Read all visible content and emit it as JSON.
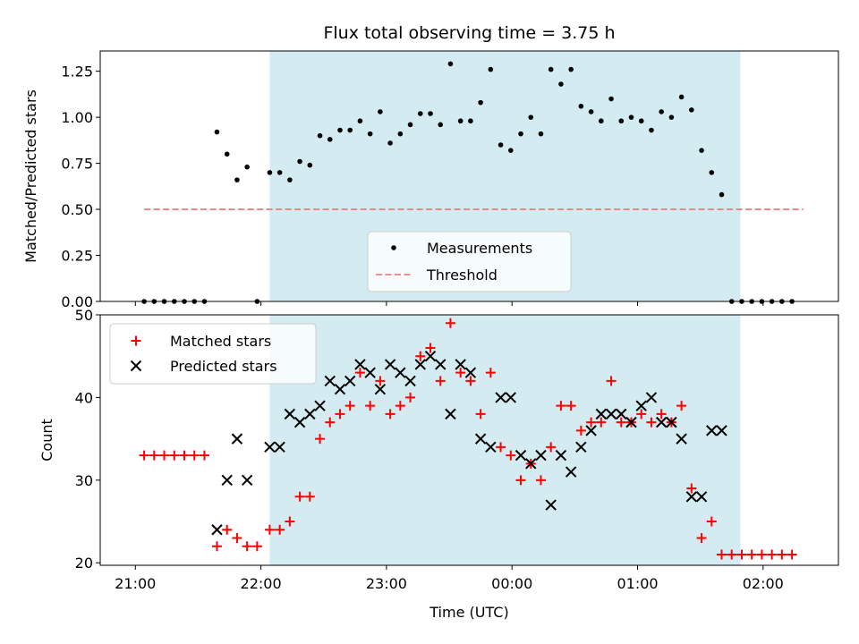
{
  "chart_data": [
    {
      "type": "scatter",
      "title": "Flux total observing time = 3.75 h",
      "xlabel": "",
      "ylabel": "Matched/Predicted stars",
      "ylim": [
        0,
        1.36
      ],
      "xlim_hours": [
        20.72,
        26.6
      ],
      "yticks": [
        0,
        0.25,
        0.5,
        0.75,
        1.0,
        1.25
      ],
      "ytick_labels": [
        "0.00",
        "0.25",
        "0.50",
        "0.75",
        "1.00",
        "1.25"
      ],
      "shaded_region_hours": [
        22.07,
        25.82
      ],
      "shaded_color": "#d3ebf1",
      "legend_placement": "lower-center",
      "legend": [
        "Measurements",
        "Threshold"
      ],
      "threshold": {
        "value": 0.5,
        "x_range_hours": [
          21.07,
          26.32
        ],
        "color": "#f08080"
      },
      "series": [
        {
          "name": "Measurements",
          "color": "#000000",
          "points": [
            [
              21.07,
              0
            ],
            [
              21.15,
              0
            ],
            [
              21.23,
              0
            ],
            [
              21.31,
              0
            ],
            [
              21.39,
              0
            ],
            [
              21.47,
              0
            ],
            [
              21.55,
              0
            ],
            [
              21.65,
              0.92
            ],
            [
              21.73,
              0.8
            ],
            [
              21.81,
              0.66
            ],
            [
              21.89,
              0.73
            ],
            [
              21.97,
              0
            ],
            [
              22.07,
              0.7
            ],
            [
              22.15,
              0.7
            ],
            [
              22.23,
              0.66
            ],
            [
              22.31,
              0.76
            ],
            [
              22.39,
              0.74
            ],
            [
              22.47,
              0.9
            ],
            [
              22.55,
              0.88
            ],
            [
              22.63,
              0.93
            ],
            [
              22.71,
              0.93
            ],
            [
              22.79,
              0.98
            ],
            [
              22.87,
              0.91
            ],
            [
              22.95,
              1.03
            ],
            [
              23.03,
              0.86
            ],
            [
              23.11,
              0.91
            ],
            [
              23.19,
              0.96
            ],
            [
              23.27,
              1.02
            ],
            [
              23.35,
              1.02
            ],
            [
              23.43,
              0.96
            ],
            [
              23.51,
              1.29
            ],
            [
              23.59,
              0.98
            ],
            [
              23.67,
              0.98
            ],
            [
              23.75,
              1.08
            ],
            [
              23.83,
              1.26
            ],
            [
              23.91,
              0.85
            ],
            [
              23.99,
              0.82
            ],
            [
              24.07,
              0.91
            ],
            [
              24.15,
              1.0
            ],
            [
              24.23,
              0.91
            ],
            [
              24.31,
              1.26
            ],
            [
              24.39,
              1.18
            ],
            [
              24.47,
              1.26
            ],
            [
              24.55,
              1.06
            ],
            [
              24.63,
              1.03
            ],
            [
              24.71,
              0.98
            ],
            [
              24.79,
              1.1
            ],
            [
              24.87,
              0.98
            ],
            [
              24.95,
              1.0
            ],
            [
              25.03,
              0.98
            ],
            [
              25.11,
              0.93
            ],
            [
              25.19,
              1.03
            ],
            [
              25.27,
              1.0
            ],
            [
              25.35,
              1.11
            ],
            [
              25.43,
              1.04
            ],
            [
              25.51,
              0.82
            ],
            [
              25.59,
              0.7
            ],
            [
              25.67,
              0.58
            ],
            [
              25.75,
              0
            ],
            [
              25.83,
              0
            ],
            [
              25.91,
              0
            ],
            [
              25.99,
              0
            ],
            [
              26.07,
              0
            ],
            [
              26.15,
              0
            ],
            [
              26.23,
              0
            ]
          ]
        }
      ]
    },
    {
      "type": "scatter",
      "title": "",
      "xlabel": "Time (UTC)",
      "ylabel": "Count",
      "ylim": [
        19.7,
        50
      ],
      "xlim_hours": [
        20.72,
        26.6
      ],
      "yticks": [
        20,
        30,
        40,
        50
      ],
      "ytick_labels": [
        "20",
        "30",
        "40",
        "50"
      ],
      "xticks_hours": [
        21,
        22,
        23,
        24,
        25,
        26
      ],
      "xtick_labels": [
        "21:00",
        "22:00",
        "23:00",
        "00:00",
        "01:00",
        "02:00"
      ],
      "shaded_region_hours": [
        22.07,
        25.82
      ],
      "legend_placement": "upper-left",
      "legend": [
        "Matched stars",
        "Predicted stars"
      ],
      "series": [
        {
          "name": "Matched stars",
          "marker": "plus",
          "color": "#ff0000",
          "points": [
            [
              21.07,
              33
            ],
            [
              21.15,
              33
            ],
            [
              21.23,
              33
            ],
            [
              21.31,
              33
            ],
            [
              21.39,
              33
            ],
            [
              21.47,
              33
            ],
            [
              21.55,
              33
            ],
            [
              21.65,
              22
            ],
            [
              21.73,
              24
            ],
            [
              21.81,
              23
            ],
            [
              21.89,
              22
            ],
            [
              21.97,
              22
            ],
            [
              22.07,
              24
            ],
            [
              22.15,
              24
            ],
            [
              22.23,
              25
            ],
            [
              22.31,
              28
            ],
            [
              22.39,
              28
            ],
            [
              22.47,
              35
            ],
            [
              22.55,
              37
            ],
            [
              22.63,
              38
            ],
            [
              22.71,
              39
            ],
            [
              22.79,
              43
            ],
            [
              22.87,
              39
            ],
            [
              22.95,
              42
            ],
            [
              23.03,
              38
            ],
            [
              23.11,
              39
            ],
            [
              23.19,
              40
            ],
            [
              23.27,
              45
            ],
            [
              23.35,
              46
            ],
            [
              23.43,
              42
            ],
            [
              23.51,
              49
            ],
            [
              23.59,
              43
            ],
            [
              23.67,
              42
            ],
            [
              23.75,
              38
            ],
            [
              23.83,
              43
            ],
            [
              23.91,
              34
            ],
            [
              23.99,
              33
            ],
            [
              24.07,
              30
            ],
            [
              24.15,
              32
            ],
            [
              24.23,
              30
            ],
            [
              24.31,
              34
            ],
            [
              24.39,
              39
            ],
            [
              24.47,
              39
            ],
            [
              24.55,
              36
            ],
            [
              24.63,
              37
            ],
            [
              24.71,
              37
            ],
            [
              24.79,
              42
            ],
            [
              24.87,
              37
            ],
            [
              24.95,
              37
            ],
            [
              25.03,
              38
            ],
            [
              25.11,
              37
            ],
            [
              25.19,
              38
            ],
            [
              25.27,
              37
            ],
            [
              25.35,
              39
            ],
            [
              25.43,
              29
            ],
            [
              25.51,
              23
            ],
            [
              25.59,
              25
            ],
            [
              25.67,
              21
            ],
            [
              25.75,
              21
            ],
            [
              25.83,
              21
            ],
            [
              25.91,
              21
            ],
            [
              25.99,
              21
            ],
            [
              26.07,
              21
            ],
            [
              26.15,
              21
            ],
            [
              26.23,
              21
            ]
          ]
        },
        {
          "name": "Predicted stars",
          "marker": "x",
          "color": "#000000",
          "points": [
            [
              21.65,
              24
            ],
            [
              21.73,
              30
            ],
            [
              21.81,
              35
            ],
            [
              21.89,
              30
            ],
            [
              22.07,
              34
            ],
            [
              22.15,
              34
            ],
            [
              22.23,
              38
            ],
            [
              22.31,
              37
            ],
            [
              22.39,
              38
            ],
            [
              22.47,
              39
            ],
            [
              22.55,
              42
            ],
            [
              22.63,
              41
            ],
            [
              22.71,
              42
            ],
            [
              22.79,
              44
            ],
            [
              22.87,
              43
            ],
            [
              22.95,
              41
            ],
            [
              23.03,
              44
            ],
            [
              23.11,
              43
            ],
            [
              23.19,
              42
            ],
            [
              23.27,
              44
            ],
            [
              23.35,
              45
            ],
            [
              23.43,
              44
            ],
            [
              23.51,
              38
            ],
            [
              23.59,
              44
            ],
            [
              23.67,
              43
            ],
            [
              23.75,
              35
            ],
            [
              23.83,
              34
            ],
            [
              23.91,
              40
            ],
            [
              23.99,
              40
            ],
            [
              24.07,
              33
            ],
            [
              24.15,
              32
            ],
            [
              24.23,
              33
            ],
            [
              24.31,
              27
            ],
            [
              24.39,
              33
            ],
            [
              24.47,
              31
            ],
            [
              24.55,
              34
            ],
            [
              24.63,
              36
            ],
            [
              24.71,
              38
            ],
            [
              24.79,
              38
            ],
            [
              24.87,
              38
            ],
            [
              24.95,
              37
            ],
            [
              25.03,
              39
            ],
            [
              25.11,
              40
            ],
            [
              25.19,
              37
            ],
            [
              25.27,
              37
            ],
            [
              25.35,
              35
            ],
            [
              25.43,
              28
            ],
            [
              25.51,
              28
            ],
            [
              25.59,
              36
            ],
            [
              25.67,
              36
            ]
          ]
        }
      ]
    }
  ]
}
